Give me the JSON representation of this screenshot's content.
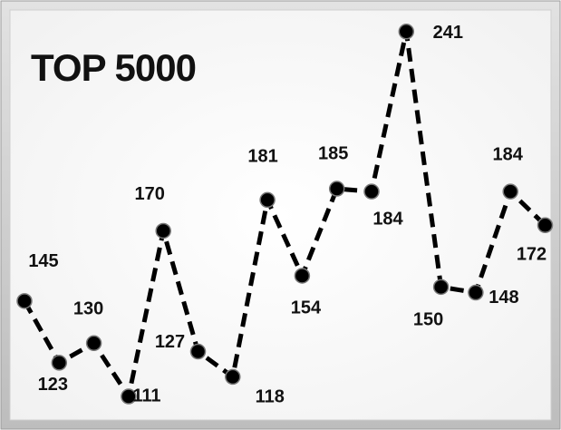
{
  "chart_data": {
    "type": "line",
    "title": "TOP 5000",
    "categories": [
      null,
      null,
      null,
      null,
      null,
      null,
      null,
      null,
      null,
      null,
      null,
      null,
      null,
      null,
      null,
      null
    ],
    "values": [
      145,
      123,
      130,
      111,
      170,
      127,
      118,
      181,
      154,
      185,
      184,
      241,
      150,
      148,
      184,
      172
    ],
    "color": "#000000",
    "line_style": "dashed",
    "markers": true,
    "data_labels": true,
    "grid": false,
    "ylim": [
      101,
      249
    ]
  }
}
